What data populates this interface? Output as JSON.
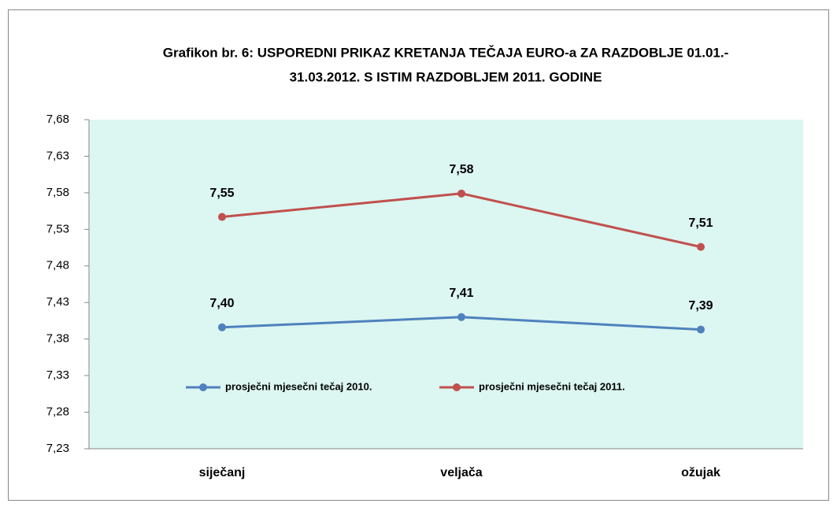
{
  "chart_data": {
    "type": "line",
    "title": [
      "Grafikon br.  6:  USPOREDNI PRIKAZ KRETANJA TEČAJA EURO-a ZA RAZDOBLJE 01.01.-",
      "31.03.2012. S  ISTIM RAZDOBLJEM 2011. GODINE"
    ],
    "categories": [
      "siječanj",
      "veljača",
      "ožujak"
    ],
    "series": [
      {
        "name": "prosječni mjesečni tečaj 2010.",
        "color": "#4f81bd",
        "values": [
          7.396,
          7.41,
          7.393
        ],
        "value_labels": [
          "7,40",
          "7,41",
          "7,39"
        ]
      },
      {
        "name": "prosječni mjesečni tečaj 2011.",
        "color": "#c0504d",
        "values": [
          7.547,
          7.579,
          7.506
        ],
        "value_labels": [
          "7,55",
          "7,58",
          "7,51"
        ]
      }
    ],
    "ylim": [
      7.23,
      7.68
    ],
    "yticks": [
      {
        "value": 7.23,
        "label": "7,23"
      },
      {
        "value": 7.28,
        "label": "7,28"
      },
      {
        "value": 7.33,
        "label": "7,33"
      },
      {
        "value": 7.38,
        "label": "7,38"
      },
      {
        "value": 7.43,
        "label": "7,43"
      },
      {
        "value": 7.48,
        "label": "7,48"
      },
      {
        "value": 7.53,
        "label": "7,53"
      },
      {
        "value": 7.58,
        "label": "7,58"
      },
      {
        "value": 7.63,
        "label": "7,63"
      },
      {
        "value": 7.68,
        "label": "7,68"
      }
    ],
    "plot_background": "#dcf6f1",
    "legend": "inside"
  }
}
